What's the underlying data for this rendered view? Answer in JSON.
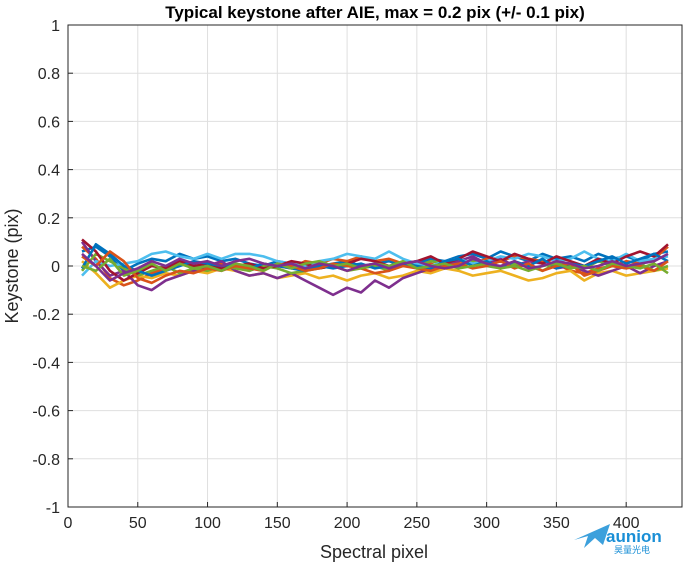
{
  "chart_data": {
    "type": "line",
    "title": "Typical keystone after AIE, max = 0.2 pix (+/- 0.1 pix)",
    "xlabel": "Spectral pixel",
    "ylabel": "Keystone (pix)",
    "xlim": [
      0,
      440
    ],
    "ylim": [
      -1,
      1
    ],
    "xticks": [
      "0",
      "50",
      "100",
      "150",
      "200",
      "250",
      "300",
      "350",
      "400"
    ],
    "yticks": [
      "-1",
      "-0.8",
      "-0.6",
      "-0.4",
      "-0.2",
      "0",
      "0.2",
      "0.4",
      "0.6",
      "0.8",
      "1"
    ],
    "xtick_values": [
      0,
      50,
      100,
      150,
      200,
      250,
      300,
      350,
      400
    ],
    "ytick_values": [
      -1,
      -0.8,
      -0.6,
      -0.4,
      -0.2,
      0,
      0.2,
      0.4,
      0.6,
      0.8,
      1
    ],
    "grid": true,
    "x": [
      10,
      20,
      30,
      40,
      50,
      60,
      70,
      80,
      90,
      100,
      110,
      120,
      130,
      140,
      150,
      160,
      170,
      180,
      190,
      200,
      210,
      220,
      230,
      240,
      250,
      260,
      270,
      280,
      290,
      300,
      310,
      320,
      330,
      340,
      350,
      360,
      370,
      380,
      390,
      400,
      410,
      420,
      430
    ],
    "series": [
      {
        "color": "#0072bd",
        "values": [
          0.06,
          0.08,
          0.04,
          -0.02,
          0.01,
          0.03,
          0.02,
          0.05,
          0.03,
          0.04,
          0.02,
          0.03,
          0.01,
          0.0,
          0.02,
          0.01,
          -0.01,
          0.0,
          0.01,
          0.02,
          0.0,
          0.01,
          0.02,
          0.0,
          0.01,
          0.03,
          0.02,
          0.04,
          0.05,
          0.03,
          0.06,
          0.04,
          0.02,
          0.05,
          0.03,
          0.04,
          0.02,
          0.05,
          0.03,
          0.04,
          0.02,
          0.05,
          0.06
        ]
      },
      {
        "color": "#d95319",
        "values": [
          0.08,
          0.03,
          -0.05,
          -0.08,
          -0.06,
          -0.03,
          -0.01,
          0.01,
          0.0,
          -0.01,
          0.01,
          0.0,
          -0.02,
          0.01,
          0.0,
          -0.01,
          0.02,
          0.01,
          0.03,
          0.02,
          0.04,
          0.02,
          0.03,
          0.01,
          0.0,
          0.01,
          -0.01,
          0.02,
          0.01,
          0.03,
          0.02,
          0.04,
          0.03,
          0.02,
          0.01,
          -0.02,
          -0.03,
          -0.01,
          0.0,
          0.02,
          0.01,
          0.03,
          0.08
        ]
      },
      {
        "color": "#edb120",
        "values": [
          0.02,
          -0.03,
          -0.09,
          -0.06,
          -0.04,
          -0.05,
          -0.03,
          -0.04,
          -0.02,
          -0.03,
          -0.01,
          -0.02,
          -0.04,
          -0.03,
          -0.05,
          -0.04,
          -0.03,
          -0.05,
          -0.04,
          -0.06,
          -0.04,
          -0.03,
          -0.05,
          -0.04,
          -0.02,
          -0.03,
          -0.01,
          -0.02,
          -0.04,
          -0.03,
          -0.02,
          -0.04,
          -0.06,
          -0.05,
          -0.03,
          -0.02,
          -0.06,
          -0.03,
          -0.02,
          -0.04,
          -0.03,
          -0.02,
          -0.01
        ]
      },
      {
        "color": "#7e2f8e",
        "values": [
          0.1,
          0.02,
          -0.04,
          -0.02,
          -0.08,
          -0.1,
          -0.06,
          -0.04,
          -0.02,
          0.0,
          0.02,
          -0.02,
          -0.04,
          -0.03,
          -0.05,
          -0.03,
          -0.06,
          -0.09,
          -0.12,
          -0.09,
          -0.11,
          -0.06,
          -0.09,
          -0.05,
          -0.03,
          -0.01,
          0.0,
          0.02,
          0.04,
          0.01,
          0.03,
          0.0,
          0.02,
          0.01,
          -0.01,
          0.0,
          -0.02,
          -0.04,
          -0.02,
          0.0,
          -0.03,
          0.0,
          0.02
        ]
      },
      {
        "color": "#77ac30",
        "values": [
          -0.02,
          0.05,
          0.02,
          -0.01,
          -0.04,
          -0.02,
          0.0,
          -0.03,
          -0.01,
          -0.02,
          0.0,
          -0.01,
          -0.02,
          0.0,
          -0.01,
          -0.03,
          -0.02,
          -0.01,
          0.0,
          -0.02,
          -0.01,
          0.0,
          -0.02,
          0.01,
          0.0,
          0.02,
          0.01,
          -0.01,
          0.02,
          0.0,
          -0.01,
          0.01,
          0.0,
          -0.02,
          0.01,
          0.0,
          -0.01,
          0.02,
          0.0,
          -0.01,
          0.01,
          -0.02,
          0.0
        ]
      },
      {
        "color": "#4dbeee",
        "values": [
          -0.04,
          0.02,
          0.0,
          0.01,
          0.02,
          0.05,
          0.06,
          0.04,
          0.03,
          0.05,
          0.03,
          0.05,
          0.05,
          0.04,
          0.02,
          0.01,
          0.0,
          0.02,
          0.03,
          0.05,
          0.04,
          0.03,
          0.06,
          0.03,
          0.01,
          0.0,
          0.02,
          0.03,
          0.01,
          0.02,
          0.04,
          0.03,
          0.05,
          0.04,
          0.02,
          0.03,
          0.06,
          0.03,
          0.02,
          0.05,
          0.02,
          0.03,
          0.04
        ]
      },
      {
        "color": "#a2142f",
        "values": [
          0.11,
          0.06,
          -0.02,
          -0.06,
          -0.03,
          0.0,
          -0.01,
          0.02,
          0.0,
          0.01,
          -0.01,
          0.0,
          0.01,
          -0.01,
          0.0,
          0.02,
          0.01,
          -0.01,
          0.0,
          0.01,
          0.03,
          0.02,
          0.0,
          0.01,
          0.02,
          0.04,
          0.01,
          0.03,
          0.06,
          0.04,
          0.02,
          0.05,
          0.03,
          0.01,
          0.04,
          0.02,
          0.0,
          0.03,
          0.01,
          0.04,
          0.06,
          0.04,
          0.09
        ]
      },
      {
        "color": "#0072bd",
        "values": [
          -0.01,
          0.09,
          0.05,
          0.0,
          -0.02,
          -0.04,
          -0.02,
          0.0,
          0.02,
          0.01,
          0.0,
          0.01,
          -0.01,
          0.01,
          0.0,
          -0.01,
          -0.02,
          0.0,
          -0.01,
          0.0,
          0.01,
          -0.01,
          0.0,
          0.01,
          0.0,
          -0.01,
          0.02,
          0.03,
          0.0,
          0.02,
          -0.01,
          0.02,
          0.0,
          0.03,
          -0.01,
          0.01,
          0.0,
          0.02,
          0.04,
          0.01,
          0.03,
          0.05,
          0.02
        ]
      },
      {
        "color": "#d95319",
        "values": [
          0.04,
          0.0,
          0.06,
          0.02,
          -0.05,
          -0.07,
          -0.04,
          -0.02,
          -0.03,
          -0.01,
          -0.02,
          0.0,
          -0.01,
          -0.02,
          0.01,
          0.0,
          -0.02,
          -0.01,
          0.01,
          0.0,
          -0.01,
          -0.03,
          -0.02,
          0.0,
          -0.01,
          -0.02,
          0.0,
          0.01,
          -0.01,
          0.0,
          0.02,
          -0.01,
          0.01,
          -0.02,
          0.0,
          0.01,
          -0.04,
          -0.02,
          0.0,
          -0.01,
          0.0,
          -0.02,
          0.02
        ]
      },
      {
        "color": "#77ac30",
        "values": [
          0.0,
          -0.02,
          0.03,
          -0.04,
          -0.02,
          0.01,
          -0.02,
          0.01,
          -0.01,
          0.0,
          -0.02,
          0.01,
          0.0,
          -0.02,
          0.01,
          -0.01,
          0.01,
          0.02,
          0.0,
          0.01,
          -0.01,
          0.01,
          0.0,
          0.02,
          -0.01,
          0.0,
          0.01,
          -0.01,
          0.0,
          0.01,
          -0.01,
          0.0,
          -0.02,
          0.0,
          0.01,
          -0.01,
          0.0,
          -0.02,
          0.01,
          0.0,
          -0.01,
          0.01,
          -0.03
        ]
      },
      {
        "color": "#7e2f8e",
        "values": [
          0.05,
          0.0,
          -0.06,
          -0.03,
          -0.01,
          0.02,
          0.0,
          0.03,
          0.01,
          0.02,
          0.0,
          0.02,
          0.03,
          0.01,
          0.0,
          0.01,
          -0.01,
          0.01,
          0.0,
          -0.02,
          0.0,
          0.01,
          -0.01,
          0.01,
          0.02,
          0.0,
          -0.01,
          0.0,
          0.03,
          0.01,
          0.0,
          0.02,
          -0.01,
          0.0,
          0.02,
          0.01,
          -0.01,
          0.0,
          0.02,
          0.0,
          0.01,
          0.02,
          0.05
        ]
      }
    ]
  },
  "watermark": {
    "brand": "aunion",
    "sub": "昊量光电",
    "color": "#1a8fd6",
    "icon": "plane-logo-icon"
  }
}
